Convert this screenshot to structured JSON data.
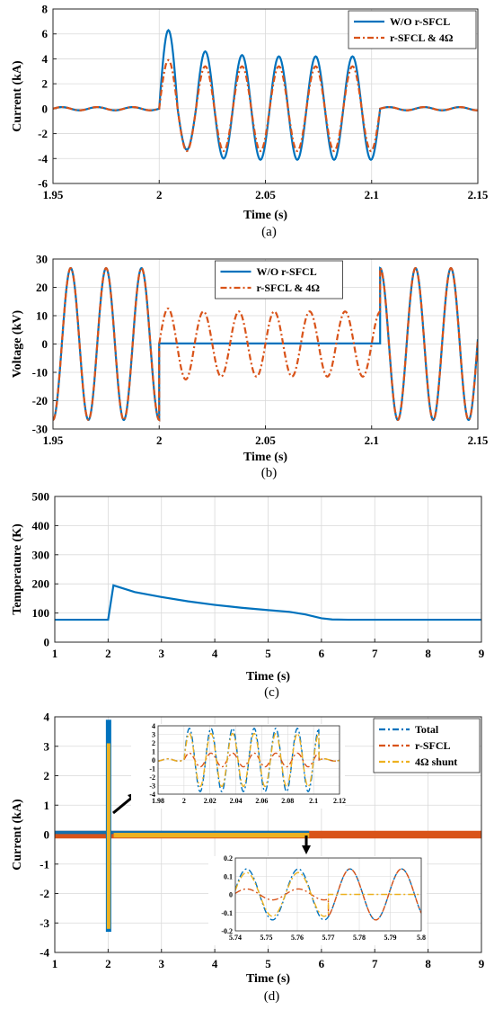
{
  "colors": {
    "blue": "#0072BD",
    "orange": "#D95319",
    "yellow": "#EDB120",
    "grid": "#d9d9d9",
    "axis": "#262626"
  },
  "chart_data": [
    {
      "id": "a",
      "type": "line",
      "caption": "(a)",
      "xlabel": "Time (s)",
      "ylabel": "Current (kA)",
      "xlim": [
        1.95,
        2.15
      ],
      "ylim": [
        -6,
        8
      ],
      "xticks": [
        1.95,
        2,
        2.05,
        2.1,
        2.15
      ],
      "xtick_labels": [
        "1.95",
        "2",
        "2.05",
        "2.1",
        "2.15"
      ],
      "yticks": [
        -6,
        -4,
        -2,
        0,
        2,
        4,
        6,
        8
      ],
      "ytick_labels": [
        "-6",
        "-4",
        "-2",
        "0",
        "2",
        "4",
        "6",
        "8"
      ],
      "grid": true,
      "legend_position": "top-right",
      "series": [
        {
          "name": "W/O r-SFCL",
          "color": "blue",
          "style": "solid",
          "pre_fault": {
            "amplitude": 0.13,
            "frequency_hz": 60
          },
          "fault": {
            "start": 2.0,
            "end": 2.104,
            "peaks": [
              6.3,
              -3.3,
              4.6,
              -4.0,
              4.3,
              -4.1,
              4.2,
              -4.1,
              4.2,
              -4.1,
              4.2,
              -4.1
            ]
          },
          "post_fault": {
            "amplitude": 0.13
          }
        },
        {
          "name": "r-SFCL & 4Ω",
          "color": "orange",
          "style": "dashdot",
          "pre_fault": {
            "amplitude": 0.13,
            "frequency_hz": 60
          },
          "fault": {
            "start": 2.0,
            "end": 2.104,
            "peaks": [
              3.9,
              -3.4,
              3.4,
              -3.4,
              3.4,
              -3.4,
              3.4,
              -3.4,
              3.4,
              -3.4,
              3.4,
              -3.4
            ]
          },
          "post_fault": {
            "amplitude": 0.13
          }
        }
      ]
    },
    {
      "id": "b",
      "type": "line",
      "caption": "(b)",
      "xlabel": "Time (s)",
      "ylabel": "Voltage (kV)",
      "xlim": [
        1.95,
        2.15
      ],
      "ylim": [
        -30,
        30
      ],
      "xticks": [
        1.95,
        2,
        2.05,
        2.1,
        2.15
      ],
      "xtick_labels": [
        "1.95",
        "2",
        "2.05",
        "2.1",
        "2.15"
      ],
      "yticks": [
        -30,
        -20,
        -10,
        0,
        10,
        20,
        30
      ],
      "ytick_labels": [
        "-30",
        "-20",
        "-10",
        "0",
        "10",
        "20",
        "30"
      ],
      "grid": true,
      "legend_position": "top-center",
      "series": [
        {
          "name": "W/O r-SFCL",
          "color": "blue",
          "style": "solid",
          "pre_fault": {
            "amplitude": 26.8,
            "frequency_hz": 60
          },
          "fault": {
            "start": 2.0,
            "end": 2.104,
            "amplitude": 0.3
          },
          "post_fault": {
            "amplitude": 26.8
          }
        },
        {
          "name": "r-SFCL & 4Ω",
          "color": "orange",
          "style": "dashdot",
          "pre_fault": {
            "amplitude": 26.8,
            "frequency_hz": 60
          },
          "fault": {
            "start": 2.0,
            "end": 2.104,
            "amplitude": 11.5,
            "first_peak": 12.5
          },
          "post_fault": {
            "amplitude": 26.8
          }
        }
      ]
    },
    {
      "id": "c",
      "type": "line",
      "caption": "(c)",
      "xlabel": "Time (s)",
      "ylabel": "Temperature (K)",
      "xlim": [
        1,
        9
      ],
      "ylim": [
        0,
        500
      ],
      "xticks": [
        1,
        2,
        3,
        4,
        5,
        6,
        7,
        8,
        9
      ],
      "xtick_labels": [
        "1",
        "2",
        "3",
        "4",
        "5",
        "6",
        "7",
        "8",
        "9"
      ],
      "yticks": [
        0,
        100,
        200,
        300,
        400,
        500
      ],
      "ytick_labels": [
        "0",
        "100",
        "200",
        "300",
        "400",
        "500"
      ],
      "grid": true,
      "series": [
        {
          "color": "blue",
          "style": "solid",
          "x": [
            1,
            2.0,
            2.1,
            2.5,
            3,
            3.5,
            4,
            4.5,
            5,
            5.4,
            5.7,
            6.0,
            6.2,
            6.5,
            7,
            8,
            9
          ],
          "y": [
            77,
            77,
            195,
            172,
            155,
            140,
            128,
            118,
            110,
            104,
            95,
            82,
            78,
            77,
            77,
            77,
            77
          ]
        }
      ]
    },
    {
      "id": "d",
      "type": "line",
      "caption": "(d)",
      "xlabel": "Time (s)",
      "ylabel": "Current (kA)",
      "xlim": [
        1,
        9
      ],
      "ylim": [
        -4,
        4
      ],
      "xticks": [
        1,
        2,
        3,
        4,
        5,
        6,
        7,
        8,
        9
      ],
      "xtick_labels": [
        "1",
        "2",
        "3",
        "4",
        "5",
        "6",
        "7",
        "8",
        "9"
      ],
      "yticks": [
        -4,
        -3,
        -2,
        -1,
        0,
        1,
        2,
        3,
        4
      ],
      "ytick_labels": [
        "-4",
        "-3",
        "-2",
        "-1",
        "0",
        "1",
        "2",
        "3",
        "4"
      ],
      "grid": true,
      "legend_position": "top-right",
      "series": [
        {
          "name": "Total",
          "color": "blue",
          "style": "dashdot"
        },
        {
          "name": "r-SFCL",
          "color": "orange",
          "style": "dashdot"
        },
        {
          "name": "4Ω shunt",
          "color": "yellow",
          "style": "dashdot"
        }
      ],
      "envelope": {
        "fault_start": 2.0,
        "fault_end": 2.104,
        "total_peak": [
          3.9,
          -3.3
        ],
        "shunt_peak": [
          3.1,
          -3.2
        ],
        "fault_band_end": 5.77,
        "total_band": 0.13,
        "rsfcl_band": 0.13
      },
      "insets": [
        {
          "id": "d1",
          "xlim": [
            1.98,
            2.12
          ],
          "ylim": [
            -4,
            4
          ],
          "xticks": [
            1.98,
            2,
            2.02,
            2.04,
            2.06,
            2.08,
            2.1,
            2.12
          ],
          "xtick_labels": [
            "1.98",
            "2",
            "2.02",
            "2.04",
            "2.06",
            "2.08",
            "2.1",
            "2.12"
          ],
          "yticks": [
            -4,
            -3,
            -2,
            -1,
            0,
            1,
            2,
            3,
            4
          ],
          "ytick_labels": [
            "-4",
            "-3",
            "-2",
            "-1",
            "0",
            "1",
            "2",
            "3",
            "4"
          ],
          "fault": {
            "start": 2.0,
            "end": 2.104,
            "total_amp": 3.7,
            "rsfcl_amp": 0.8,
            "shunt_amp": 3.1
          },
          "pre_amp": 0.13
        },
        {
          "id": "d2",
          "xlim": [
            5.74,
            5.8
          ],
          "ylim": [
            -0.2,
            0.2
          ],
          "xticks": [
            5.74,
            5.75,
            5.76,
            5.77,
            5.78,
            5.79,
            5.8
          ],
          "xtick_labels": [
            "5.74",
            "5.75",
            "5.76",
            "5.77",
            "5.78",
            "5.79",
            "5.8"
          ],
          "yticks": [
            -0.2,
            -0.1,
            0,
            0.1,
            0.2
          ],
          "ytick_labels": [
            "-0.2",
            "-0.1",
            "0",
            "0.1",
            "0.2"
          ],
          "recovery_time": 5.77,
          "total_amp": 0.14,
          "rsfcl_amp_before": 0.03,
          "shunt_amp_before": 0.12,
          "amp_after": 0.14
        }
      ]
    }
  ]
}
